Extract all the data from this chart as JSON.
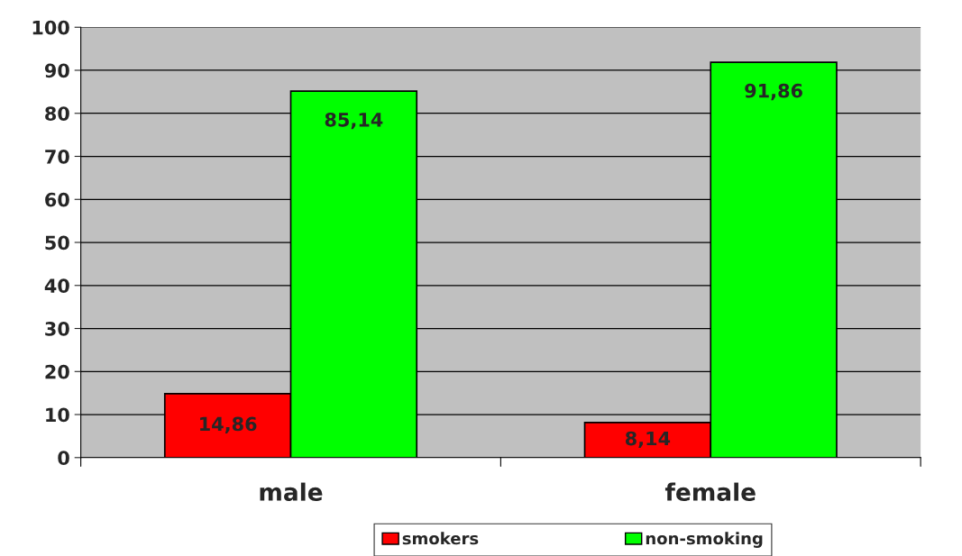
{
  "chart_data": {
    "type": "bar",
    "categories": [
      "male",
      "female"
    ],
    "series": [
      {
        "name": "smokers",
        "color": "#ff0000",
        "values": [
          14.86,
          8.14
        ],
        "value_labels": [
          "14,86",
          "8,14"
        ]
      },
      {
        "name": "non-smoking",
        "color": "#00ff00",
        "values": [
          85.14,
          91.86
        ],
        "value_labels": [
          "85,14",
          "91,86"
        ]
      }
    ],
    "ylim": [
      0,
      100
    ],
    "yticks": [
      0,
      10,
      20,
      30,
      40,
      50,
      60,
      70,
      80,
      90,
      100
    ],
    "grid": "y",
    "legend": "bottom"
  }
}
